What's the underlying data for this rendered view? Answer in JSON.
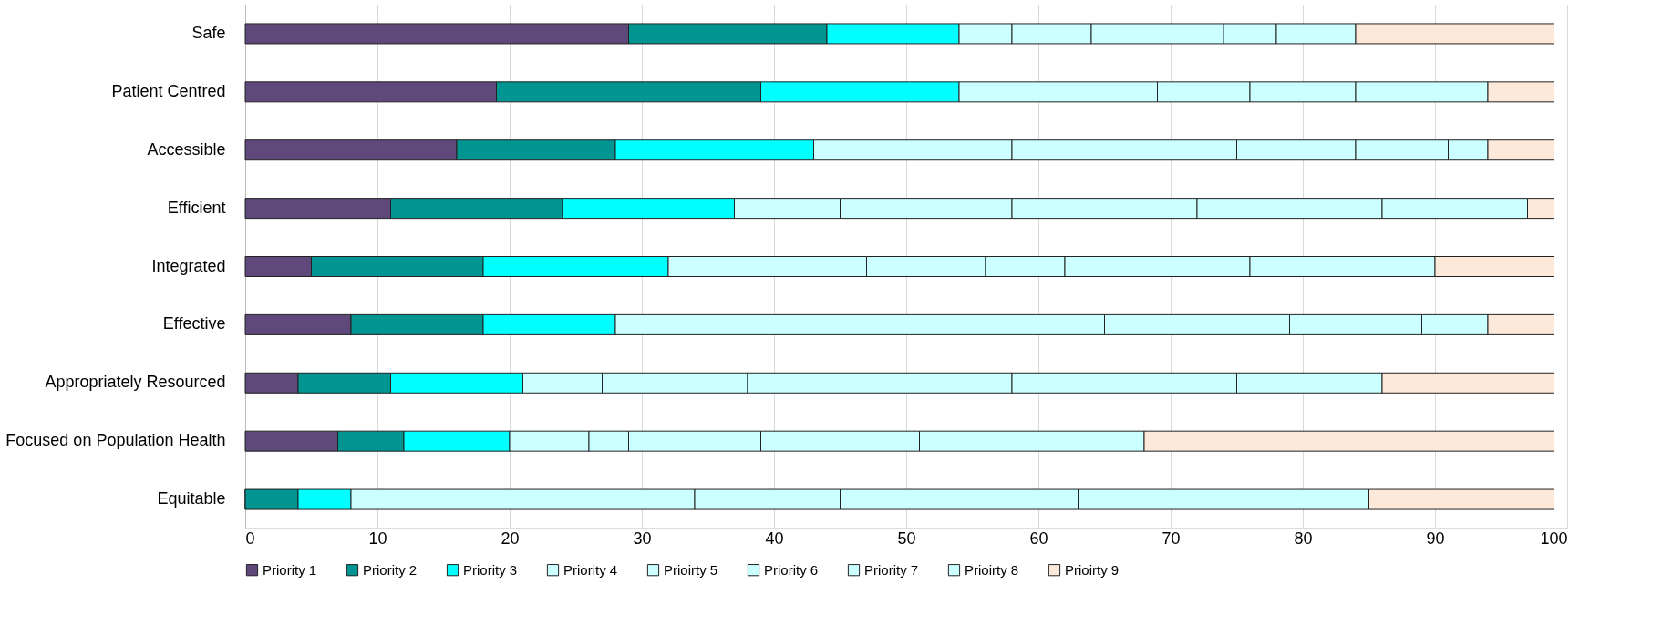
{
  "chart_data": {
    "type": "bar",
    "orientation": "horizontal",
    "stacked": true,
    "categories": [
      "Safe",
      "Patient Centred",
      "Accessible",
      "Efficient",
      "Integrated",
      "Effective",
      "Appropriately Resourced",
      "Focused on Population Health",
      "Equitable"
    ],
    "series": [
      {
        "name": "Priority 1",
        "color": "#5f497a",
        "values": [
          29,
          19,
          16,
          11,
          5,
          8,
          4,
          7,
          0
        ]
      },
      {
        "name": "Priority 2",
        "color": "#009590",
        "values": [
          15,
          20,
          12,
          13,
          13,
          10,
          7,
          5,
          4
        ]
      },
      {
        "name": "Priority 3",
        "color": "#00ffff",
        "values": [
          10,
          15,
          15,
          13,
          14,
          10,
          10,
          8,
          4
        ]
      },
      {
        "name": "Priority 4",
        "color": "#ccffff",
        "values": [
          4,
          15,
          15,
          8,
          15,
          21,
          6,
          6,
          9
        ]
      },
      {
        "name": "Prioirty 5",
        "color": "#ccffff",
        "values": [
          6,
          7,
          17,
          13,
          9,
          16,
          11,
          3,
          17
        ]
      },
      {
        "name": "Priority 6",
        "color": "#ccffff",
        "values": [
          10,
          5,
          9,
          14,
          6,
          14,
          20,
          10,
          11
        ]
      },
      {
        "name": "Priority 7",
        "color": "#ccffff",
        "values": [
          4,
          3,
          7,
          14,
          14,
          10,
          17,
          12,
          18
        ]
      },
      {
        "name": "Prioirty 8",
        "color": "#ccffff",
        "values": [
          6,
          10,
          3,
          11,
          14,
          5,
          11,
          17,
          22
        ]
      },
      {
        "name": "Prioirty 9",
        "color": "#fde9d9",
        "values": [
          15,
          5,
          5,
          2,
          9,
          5,
          13,
          31,
          14
        ]
      }
    ],
    "xlim": [
      0,
      100
    ],
    "xticks": [
      0,
      10,
      20,
      30,
      40,
      50,
      60,
      70,
      80,
      90,
      100
    ],
    "grid": "x",
    "legend": "bottom"
  }
}
